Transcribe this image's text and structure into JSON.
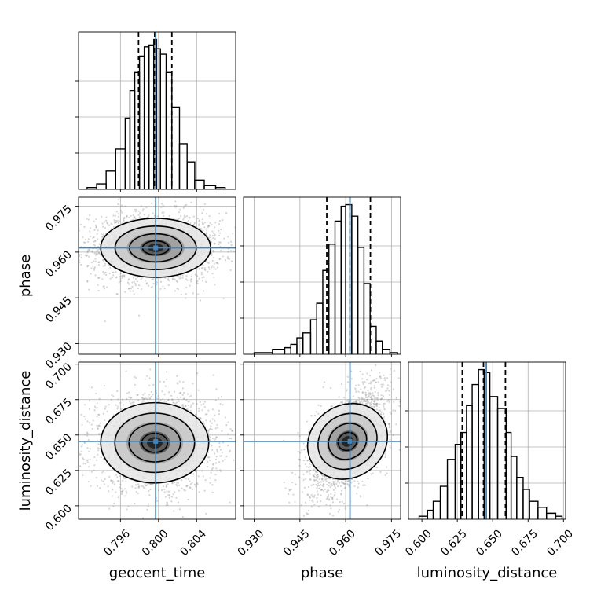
{
  "chart_data": {
    "type": "corner",
    "parameters": [
      "geocent_time",
      "phase",
      "luminosity_distance"
    ],
    "truths": [
      0.7997,
      0.9614,
      0.6455
    ],
    "colors": {
      "truth": "#4682b4",
      "hist": "#000000",
      "grid": "#b0b0b0"
    },
    "ranges": [
      [
        0.7916,
        0.8081
      ],
      [
        0.9265,
        0.978
      ],
      [
        0.5905,
        0.7015
      ]
    ],
    "ticks": [
      {
        "values": [
          0.796,
          0.8,
          0.804
        ],
        "labels": [
          "0.796",
          "0.800",
          "0.804"
        ]
      },
      {
        "values": [
          0.93,
          0.945,
          0.96,
          0.975
        ],
        "labels": [
          "0.930",
          "0.945",
          "0.960",
          "0.975"
        ]
      },
      {
        "values": [
          0.6,
          0.625,
          0.65,
          0.675,
          0.7
        ],
        "labels": [
          "0.600",
          "0.625",
          "0.650",
          "0.675",
          "0.700"
        ]
      }
    ],
    "marginals": [
      {
        "quantiles": [
          0.7979,
          0.7996,
          0.8014
        ],
        "edges": [
          0.7925,
          0.7935,
          0.7945,
          0.7955,
          0.7965,
          0.797,
          0.7975,
          0.798,
          0.7985,
          0.799,
          0.7995,
          0.7998,
          0.8002,
          0.8008,
          0.8014,
          0.8022,
          0.803,
          0.8038,
          0.8048,
          0.806,
          0.807
        ],
        "counts": [
          1,
          3,
          10,
          22,
          39,
          54,
          64,
          73,
          78,
          79,
          82,
          77,
          74,
          64,
          45,
          25,
          15,
          5,
          2,
          1
        ]
      },
      {
        "quantiles": [
          0.9538,
          0.9614,
          0.9681
        ],
        "edges": [
          0.93,
          0.936,
          0.94,
          0.942,
          0.944,
          0.946,
          0.9485,
          0.9505,
          0.9525,
          0.9545,
          0.9565,
          0.9585,
          0.96,
          0.962,
          0.964,
          0.966,
          0.968,
          0.97,
          0.972,
          0.9745,
          0.977
        ],
        "counts": [
          1,
          3,
          4,
          6,
          10,
          13,
          21,
          31,
          51,
          67,
          81,
          90,
          91,
          84,
          65,
          43,
          17,
          8,
          3,
          1
        ]
      },
      {
        "quantiles": [
          0.6285,
          0.6435,
          0.659
        ],
        "edges": [
          0.598,
          0.604,
          0.608,
          0.613,
          0.618,
          0.6235,
          0.6275,
          0.6315,
          0.6355,
          0.64,
          0.644,
          0.648,
          0.6535,
          0.6595,
          0.663,
          0.667,
          0.6715,
          0.676,
          0.682,
          0.688,
          0.6945,
          0.699
        ],
        "counts": [
          1,
          3,
          6,
          11,
          20,
          25,
          29,
          38,
          45,
          50,
          49,
          41,
          37,
          29,
          21,
          14,
          10,
          6,
          4,
          2,
          1
        ]
      }
    ],
    "joint": [
      {
        "x": "geocent_time",
        "y": "phase",
        "center": [
          0.7997,
          0.9614
        ],
        "sigma": [
          0.00275,
          0.0046
        ],
        "rho": 0.0
      },
      {
        "x": "geocent_time",
        "y": "luminosity_distance",
        "center": [
          0.7996,
          0.6445
        ],
        "sigma": [
          0.0027,
          0.0135
        ],
        "rho": 0.0
      },
      {
        "x": "phase",
        "y": "luminosity_distance",
        "center": [
          0.9606,
          0.6455
        ],
        "sigma": [
          0.0052,
          0.0155
        ],
        "rho": 0.55
      }
    ]
  }
}
